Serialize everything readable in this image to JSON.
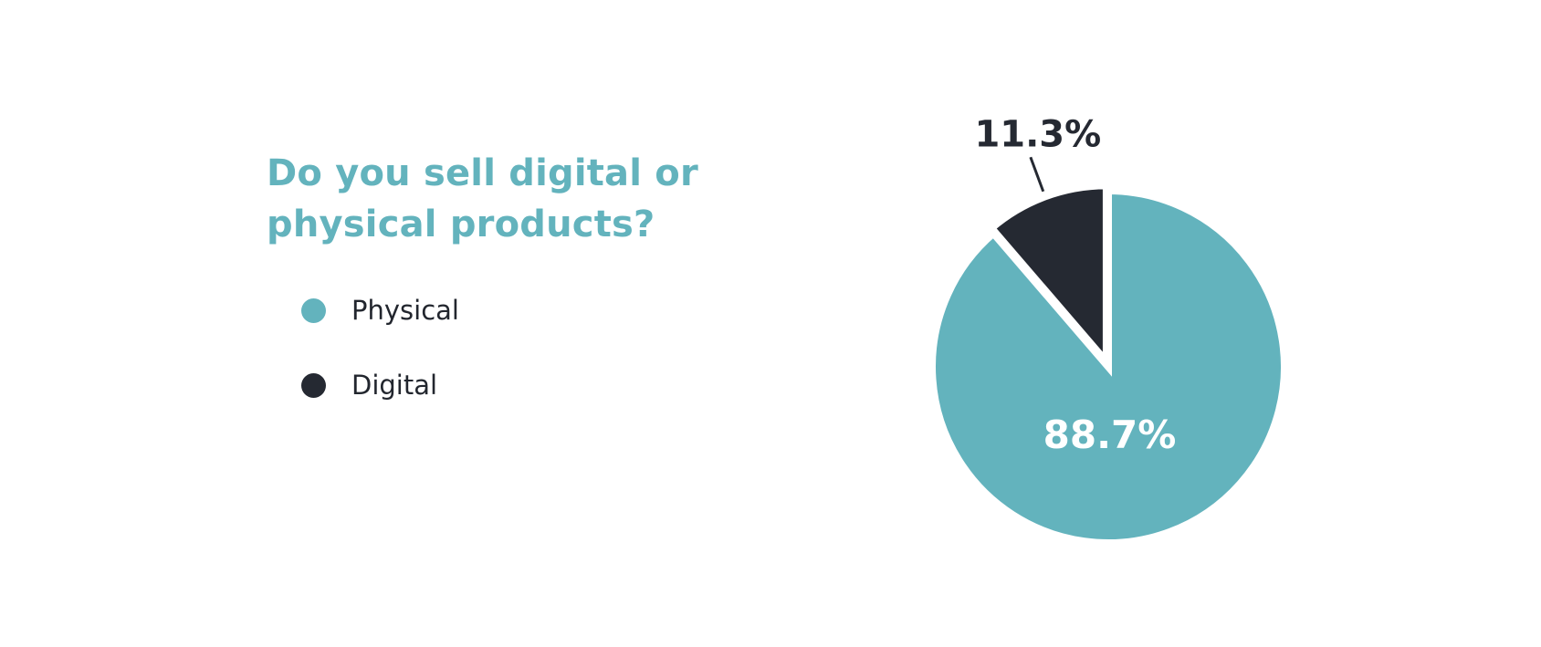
{
  "chart_data": {
    "type": "pie",
    "title": "Do you sell digital or physical products?",
    "slices": [
      {
        "label": "Physical",
        "value": 88.7,
        "value_label": "88.7%",
        "color": "#63b3bd"
      },
      {
        "label": "Digital",
        "value": 11.3,
        "value_label": "11.3%",
        "color": "#252932"
      }
    ],
    "legend_position": "left"
  },
  "colors": {
    "accent": "#63b3bd",
    "dark": "#252932",
    "background": "#ffffff"
  }
}
